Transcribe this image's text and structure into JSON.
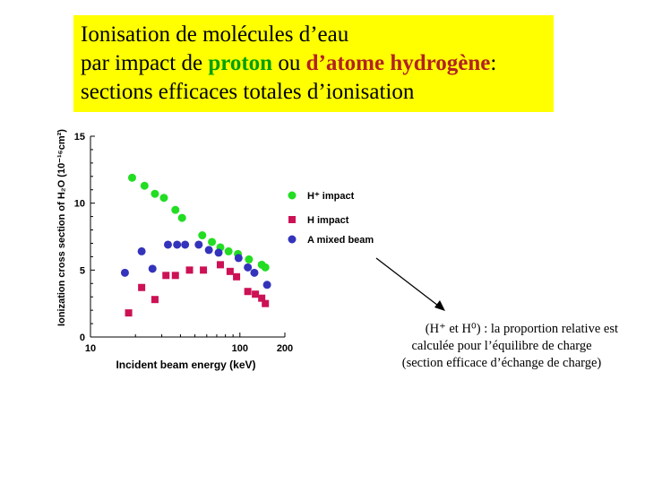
{
  "title": {
    "line1": "Ionisation de molécules d’eau",
    "line2_pre": "par impact de ",
    "line2_proton": "proton",
    "line2_mid": " ou ",
    "line2_hatom": "d’atome hydrogène",
    "line2_post": ":",
    "line3": "sections efficaces totales d’ionisation"
  },
  "colors": {
    "title_bg": "#ffff00",
    "proton": "#00a000",
    "hatom": "#b22222",
    "h_plus_series": "#22dd22",
    "h_series": "#cc1155",
    "mixed_series": "#3333bb"
  },
  "note": {
    "line1": "(H⁺ et H⁰) : la proportion relative est",
    "line2": "calculée pour l’équilibre de charge",
    "line3": "(section efficace d’échange de charge)"
  },
  "chart_data": {
    "type": "scatter",
    "xscale": "log",
    "xlim": [
      10,
      200
    ],
    "ylim": [
      0,
      15
    ],
    "xlabel": "Incident beam energy (keV)",
    "ylabel": "Ionization cross section of H₂O (10⁻¹⁶cm²)",
    "xticks": [
      10,
      100,
      200
    ],
    "yticks": [
      0,
      5,
      10,
      15
    ],
    "grid": false,
    "legend_position": "right",
    "series": [
      {
        "name": "H⁺ impact",
        "marker": "circle",
        "color": "#22dd22",
        "points": [
          [
            19,
            11.9
          ],
          [
            23,
            11.3
          ],
          [
            27,
            10.7
          ],
          [
            31,
            10.4
          ],
          [
            37,
            9.5
          ],
          [
            41,
            8.9
          ],
          [
            56,
            7.6
          ],
          [
            65,
            7.1
          ],
          [
            74,
            6.7
          ],
          [
            84,
            6.4
          ],
          [
            97,
            6.2
          ],
          [
            115,
            5.8
          ],
          [
            140,
            5.4
          ],
          [
            148,
            5.2
          ]
        ]
      },
      {
        "name": "H impact",
        "marker": "square",
        "color": "#cc1155",
        "points": [
          [
            18,
            1.8
          ],
          [
            22,
            3.7
          ],
          [
            27,
            2.8
          ],
          [
            32,
            4.6
          ],
          [
            37,
            4.6
          ],
          [
            46,
            5.0
          ],
          [
            57,
            5.0
          ],
          [
            74,
            5.4
          ],
          [
            86,
            4.9
          ],
          [
            95,
            4.5
          ],
          [
            113,
            3.4
          ],
          [
            127,
            3.2
          ],
          [
            140,
            2.9
          ],
          [
            148,
            2.5
          ]
        ]
      },
      {
        "name": "A mixed beam",
        "marker": "circle",
        "color": "#3333bb",
        "points": [
          [
            17,
            4.8
          ],
          [
            22,
            6.4
          ],
          [
            26,
            5.1
          ],
          [
            33,
            6.9
          ],
          [
            38,
            6.9
          ],
          [
            43,
            6.9
          ],
          [
            53,
            6.9
          ],
          [
            62,
            6.5
          ],
          [
            72,
            6.3
          ],
          [
            98,
            5.9
          ],
          [
            113,
            5.2
          ],
          [
            125,
            4.8
          ],
          [
            152,
            3.9
          ]
        ]
      }
    ]
  }
}
